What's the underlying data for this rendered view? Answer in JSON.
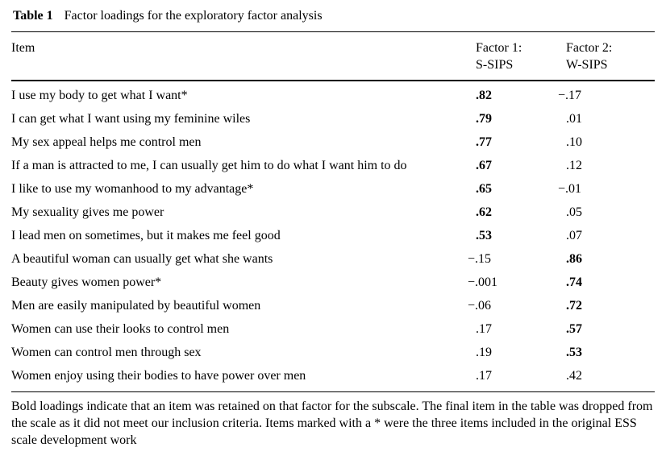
{
  "caption": {
    "label": "Table 1",
    "text": "Factor loadings for the exploratory factor analysis"
  },
  "header": {
    "item": "Item",
    "factor1": "Factor 1:\nS-SIPS",
    "factor2": "Factor 2:\nW-SIPS"
  },
  "rows": [
    {
      "item": "I use my body to get what I want*",
      "f1": ".82",
      "f1_bold": true,
      "f2": "−.17",
      "f2_bold": false
    },
    {
      "item": "I can get what I want using my feminine wiles",
      "f1": ".79",
      "f1_bold": true,
      "f2": ".01",
      "f2_bold": false
    },
    {
      "item": "My sex appeal helps me control men",
      "f1": ".77",
      "f1_bold": true,
      "f2": ".10",
      "f2_bold": false
    },
    {
      "item": "If a man is attracted to me, I can usually get him to do what I want him to do",
      "f1": ".67",
      "f1_bold": true,
      "f2": ".12",
      "f2_bold": false
    },
    {
      "item": "I like to use my womanhood to my advantage*",
      "f1": ".65",
      "f1_bold": true,
      "f2": "−.01",
      "f2_bold": false
    },
    {
      "item": "My sexuality gives me power",
      "f1": ".62",
      "f1_bold": true,
      "f2": ".05",
      "f2_bold": false
    },
    {
      "item": "I lead men on sometimes, but it makes me feel good",
      "f1": ".53",
      "f1_bold": true,
      "f2": ".07",
      "f2_bold": false
    },
    {
      "item": "A beautiful woman can usually get what she wants",
      "f1": "−.15",
      "f1_bold": false,
      "f2": ".86",
      "f2_bold": true
    },
    {
      "item": "Beauty gives women power*",
      "f1": "−.001",
      "f1_bold": false,
      "f2": ".74",
      "f2_bold": true
    },
    {
      "item": "Men are easily manipulated by beautiful women",
      "f1": "−.06",
      "f1_bold": false,
      "f2": ".72",
      "f2_bold": true
    },
    {
      "item": "Women can use their looks to control men",
      "f1": ".17",
      "f1_bold": false,
      "f2": ".57",
      "f2_bold": true
    },
    {
      "item": "Women can control men through sex",
      "f1": ".19",
      "f1_bold": false,
      "f2": ".53",
      "f2_bold": true
    },
    {
      "item": "Women enjoy using their bodies to have power over men",
      "f1": ".17",
      "f1_bold": false,
      "f2": ".42",
      "f2_bold": false
    }
  ],
  "footnote": "Bold loadings indicate that an item was retained on that factor for the subscale. The final item in the table was dropped from the scale as it did not meet our inclusion criteria. Items marked with a * were the three items included in the original ESS scale development work"
}
